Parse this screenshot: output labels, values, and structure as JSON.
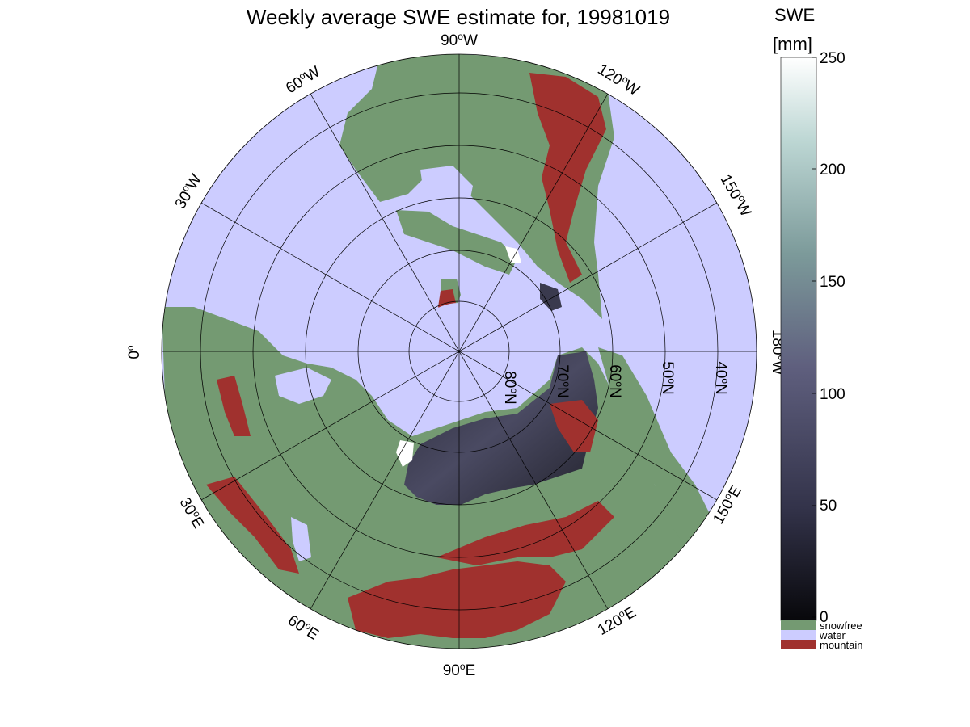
{
  "title": "Weekly average SWE estimate for, 19981019",
  "colors": {
    "water": "#ccccff",
    "snowfree": "#749a72",
    "mountain": "#a0312e",
    "snow_low": "#08080b",
    "snow_mid": "#5a5a7a",
    "snow_high": "#ffffff"
  },
  "map": {
    "projection": "north polar stereographic",
    "longitude_labels": [
      {
        "text": "90°W",
        "deg": "90",
        "hem": "W"
      },
      {
        "text": "120°W",
        "deg": "120",
        "hem": "W"
      },
      {
        "text": "150°W",
        "deg": "150",
        "hem": "W"
      },
      {
        "text": "180°W",
        "deg": "180",
        "hem": "W"
      },
      {
        "text": "150°E",
        "deg": "150",
        "hem": "E"
      },
      {
        "text": "120°E",
        "deg": "120",
        "hem": "E"
      },
      {
        "text": "90°E",
        "deg": "90",
        "hem": "E"
      },
      {
        "text": "60°E",
        "deg": "60",
        "hem": "E"
      },
      {
        "text": "30°E",
        "deg": "30",
        "hem": "E"
      },
      {
        "text": "0°",
        "deg": "0",
        "hem": ""
      },
      {
        "text": "30°W",
        "deg": "30",
        "hem": "W"
      },
      {
        "text": "60°W",
        "deg": "60",
        "hem": "W"
      }
    ],
    "latitude_labels": [
      {
        "text": "80°N",
        "deg": "80",
        "hem": "N"
      },
      {
        "text": "70°N",
        "deg": "70",
        "hem": "N"
      },
      {
        "text": "60°N",
        "deg": "60",
        "hem": "N"
      },
      {
        "text": "50°N",
        "deg": "50",
        "hem": "N"
      },
      {
        "text": "40°N",
        "deg": "40",
        "hem": "N"
      }
    ]
  },
  "colorbar": {
    "label_line1": "SWE",
    "label_line2": "[mm]",
    "ticks": [
      "0",
      "50",
      "100",
      "150",
      "200",
      "250"
    ],
    "range": [
      0,
      250
    ],
    "categories": [
      {
        "label": "snowfree",
        "color": "#749a72"
      },
      {
        "label": "water",
        "color": "#ccccff"
      },
      {
        "label": "mountain",
        "color": "#a0312e"
      }
    ]
  }
}
